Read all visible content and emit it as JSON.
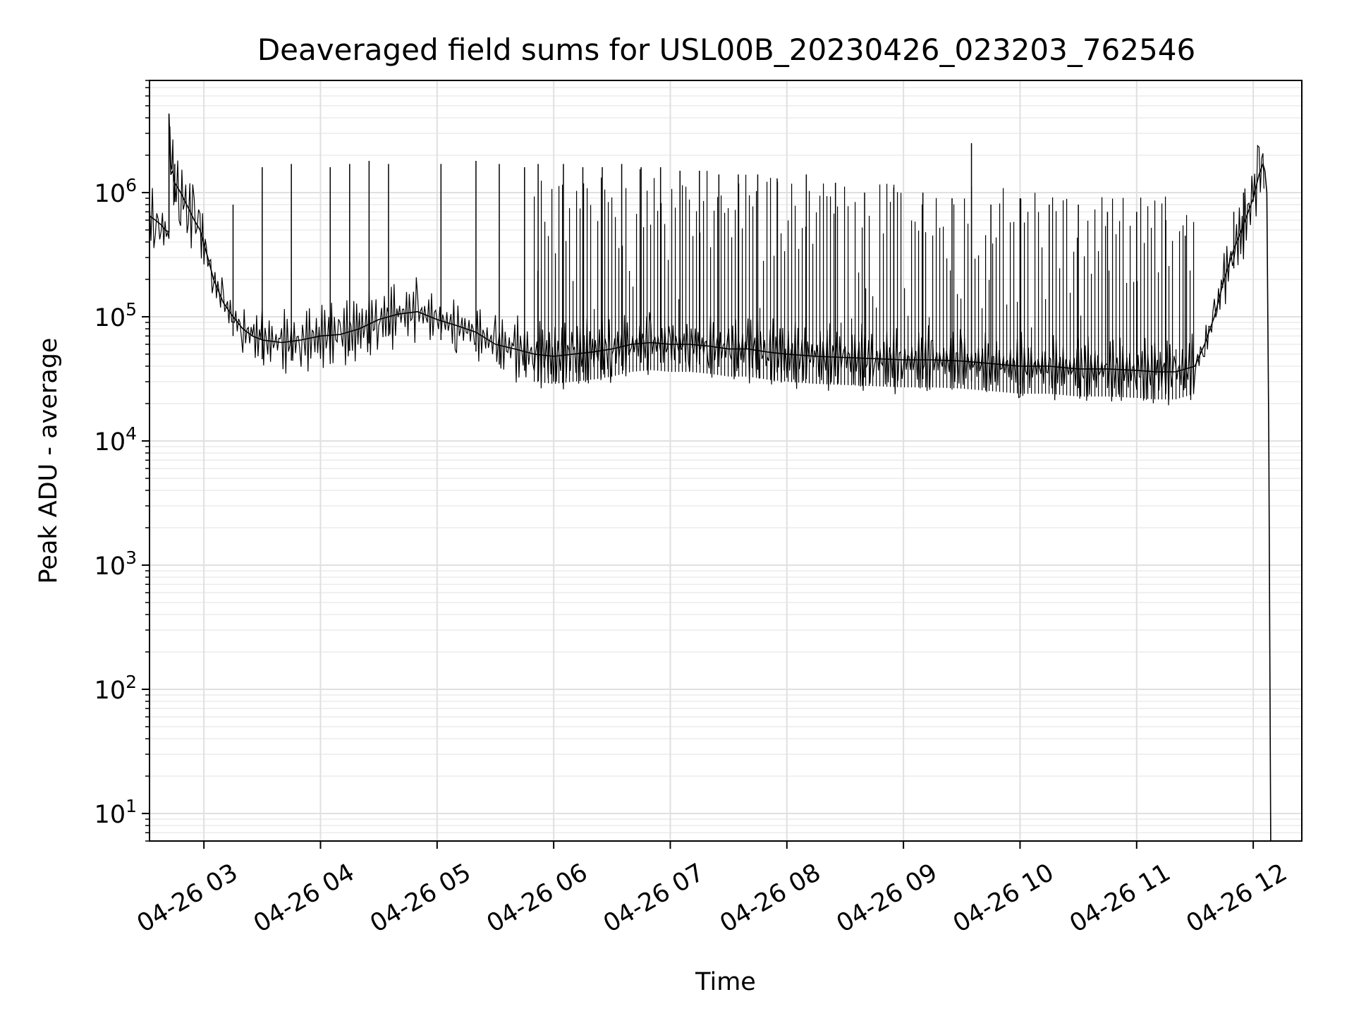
{
  "chart_data": {
    "type": "line",
    "title": "Deaveraged field sums for USL00B_20230426_023203_762546",
    "xlabel": "Time",
    "ylabel": "Peak ADU - average",
    "y_scale": "log",
    "grid": true,
    "legend": "none",
    "xlim": [
      "2023-04-26 02:32",
      "2023-04-26 12:25"
    ],
    "ylim": [
      6,
      8000000
    ],
    "x_ticks": [
      {
        "value": "2023-04-26 03:00",
        "label": "04-26 03"
      },
      {
        "value": "2023-04-26 04:00",
        "label": "04-26 04"
      },
      {
        "value": "2023-04-26 05:00",
        "label": "04-26 05"
      },
      {
        "value": "2023-04-26 06:00",
        "label": "04-26 06"
      },
      {
        "value": "2023-04-26 07:00",
        "label": "04-26 07"
      },
      {
        "value": "2023-04-26 08:00",
        "label": "04-26 08"
      },
      {
        "value": "2023-04-26 09:00",
        "label": "04-26 09"
      },
      {
        "value": "2023-04-26 10:00",
        "label": "04-26 10"
      },
      {
        "value": "2023-04-26 11:00",
        "label": "04-26 11"
      },
      {
        "value": "2023-04-26 12:00",
        "label": "04-26 12"
      }
    ],
    "y_ticks": [
      {
        "value": 10,
        "base": "10",
        "exp": "1"
      },
      {
        "value": 100,
        "base": "10",
        "exp": "2"
      },
      {
        "value": 1000,
        "base": "10",
        "exp": "3"
      },
      {
        "value": 10000,
        "base": "10",
        "exp": "4"
      },
      {
        "value": 100000,
        "base": "10",
        "exp": "5"
      },
      {
        "value": 1000000,
        "base": "10",
        "exp": "6"
      }
    ],
    "series": [
      {
        "color": "#000000",
        "x": [
          "2023-04-26 02:32",
          "2023-04-26 02:35",
          "2023-04-26 02:38",
          "2023-04-26 02:40",
          "2023-04-26 02:42",
          "2023-04-26 02:42",
          "2023-04-26 02:43",
          "2023-04-26 02:44",
          "2023-04-26 02:45",
          "2023-04-26 02:48",
          "2023-04-26 02:52",
          "2023-04-26 02:55",
          "2023-04-26 02:58",
          "2023-04-26 03:02",
          "2023-04-26 03:05",
          "2023-04-26 03:10",
          "2023-04-26 03:15",
          "2023-04-26 03:20",
          "2023-04-26 03:25",
          "2023-04-26 03:30",
          "2023-04-26 03:40",
          "2023-04-26 03:50",
          "2023-04-26 04:00",
          "2023-04-26 04:10",
          "2023-04-26 04:20",
          "2023-04-26 04:30",
          "2023-04-26 04:40",
          "2023-04-26 04:50",
          "2023-04-26 05:00",
          "2023-04-26 05:10",
          "2023-04-26 05:20",
          "2023-04-26 05:30",
          "2023-04-26 05:40",
          "2023-04-26 05:50",
          "2023-04-26 06:00",
          "2023-04-26 06:10",
          "2023-04-26 06:20",
          "2023-04-26 06:30",
          "2023-04-26 06:40",
          "2023-04-26 06:50",
          "2023-04-26 07:00",
          "2023-04-26 07:10",
          "2023-04-26 07:20",
          "2023-04-26 07:30",
          "2023-04-26 07:40",
          "2023-04-26 07:50",
          "2023-04-26 08:00",
          "2023-04-26 08:15",
          "2023-04-26 08:30",
          "2023-04-26 08:45",
          "2023-04-26 09:00",
          "2023-04-26 09:15",
          "2023-04-26 09:30",
          "2023-04-26 09:45",
          "2023-04-26 10:00",
          "2023-04-26 10:15",
          "2023-04-26 10:30",
          "2023-04-26 10:45",
          "2023-04-26 11:00",
          "2023-04-26 11:10",
          "2023-04-26 11:20",
          "2023-04-26 11:30",
          "2023-04-26 11:35",
          "2023-04-26 11:40",
          "2023-04-26 11:45",
          "2023-04-26 11:50",
          "2023-04-26 11:55",
          "2023-04-26 12:00",
          "2023-04-26 12:03",
          "2023-04-26 12:05",
          "2023-04-26 12:06",
          "2023-04-26 12:07",
          "2023-04-26 12:08",
          "2023-04-26 12:09"
        ],
        "y": [
          650000,
          600000,
          550000,
          500000,
          480000,
          4300000,
          1400000,
          1500000,
          1200000,
          1000000,
          750000,
          600000,
          500000,
          300000,
          200000,
          130000,
          100000,
          80000,
          70000,
          65000,
          62000,
          65000,
          70000,
          72000,
          80000,
          95000,
          105000,
          110000,
          95000,
          85000,
          75000,
          60000,
          55000,
          50000,
          48000,
          50000,
          52000,
          55000,
          60000,
          62000,
          60000,
          60000,
          58000,
          55000,
          55000,
          52000,
          50000,
          48000,
          47000,
          46000,
          45000,
          45000,
          44000,
          42000,
          40000,
          40000,
          38000,
          38000,
          37000,
          36000,
          36000,
          40000,
          60000,
          100000,
          200000,
          350000,
          550000,
          900000,
          1400000,
          1700000,
          1500000,
          1000000,
          10000,
          6
        ]
      }
    ],
    "spikes": {
      "x": [
        "2023-04-26 02:45",
        "2023-04-26 03:15",
        "2023-04-26 03:30",
        "2023-04-26 03:45",
        "2023-04-26 04:05",
        "2023-04-26 04:15",
        "2023-04-26 04:25",
        "2023-04-26 04:35",
        "2023-04-26 05:02",
        "2023-04-26 05:20",
        "2023-04-26 05:32",
        "2023-04-26 05:45",
        "2023-04-26 05:52",
        "2023-04-26 06:05",
        "2023-04-26 06:15",
        "2023-04-26 06:25",
        "2023-04-26 06:35",
        "2023-04-26 06:45",
        "2023-04-26 06:55",
        "2023-04-26 07:05",
        "2023-04-26 07:15",
        "2023-04-26 07:25",
        "2023-04-26 07:35",
        "2023-04-26 07:45",
        "2023-04-26 07:55",
        "2023-04-26 08:10",
        "2023-04-26 08:25",
        "2023-04-26 08:40",
        "2023-04-26 08:55",
        "2023-04-26 09:10",
        "2023-04-26 09:25",
        "2023-04-26 09:35",
        "2023-04-26 09:45",
        "2023-04-26 10:00",
        "2023-04-26 10:15",
        "2023-04-26 10:30",
        "2023-04-26 10:45",
        "2023-04-26 11:00",
        "2023-04-26 11:15",
        "2023-04-26 11:25",
        "2023-04-26 11:50",
        "2023-04-26 11:55"
      ],
      "y": [
        1700000,
        800000,
        1600000,
        1700000,
        1600000,
        1700000,
        1800000,
        1700000,
        1700000,
        1800000,
        1700000,
        1600000,
        1700000,
        1700000,
        1600000,
        1600000,
        1700000,
        1600000,
        1600000,
        1500000,
        1500000,
        1400000,
        1400000,
        1400000,
        1300000,
        1400000,
        1200000,
        1000000,
        1100000,
        1000000,
        900000,
        2500000,
        800000,
        900000,
        800000,
        800000,
        700000,
        700000,
        600000,
        450000,
        700000,
        1000000
      ]
    }
  }
}
